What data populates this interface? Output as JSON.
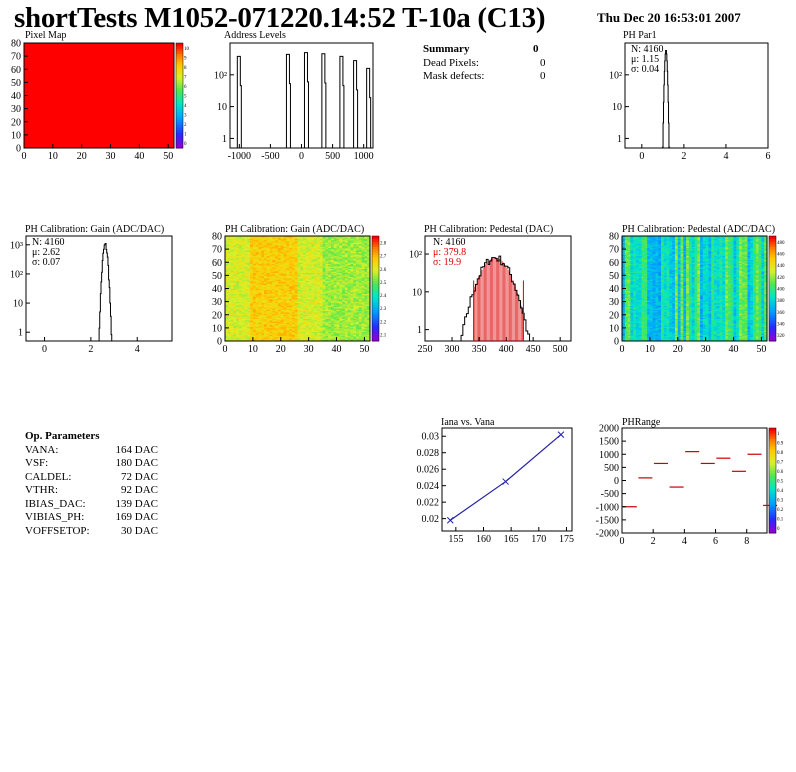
{
  "title": "shortTests M1052-071220.14:52 T-10a (C13)",
  "datetime": "Thu Dec 20 16:53:01 2007",
  "summary": {
    "heading": "Summary",
    "heading_value": "0",
    "rows": [
      {
        "label": "Dead Pixels:",
        "value": "0"
      },
      {
        "label": "Mask defects:",
        "value": "0"
      }
    ]
  },
  "op_params": {
    "heading": "Op. Parameters",
    "rows": [
      {
        "label": "VANA:",
        "value": "164 DAC"
      },
      {
        "label": "VSF:",
        "value": "180 DAC"
      },
      {
        "label": "CALDEL:",
        "value": "72 DAC"
      },
      {
        "label": "VTHR:",
        "value": "92 DAC"
      },
      {
        "label": "IBIAS_DAC:",
        "value": "139 DAC"
      },
      {
        "label": "VIBIAS_PH:",
        "value": "169 DAC"
      },
      {
        "label": "VOFFSETOP:",
        "value": "30 DAC"
      }
    ]
  },
  "chart_data": [
    {
      "id": "pixel-map",
      "type": "heatmap",
      "title": "Pixel Map",
      "x_ticks": [
        "0",
        "10",
        "20",
        "30",
        "40",
        "50"
      ],
      "y_ticks": [
        "0",
        "10",
        "20",
        "30",
        "40",
        "50",
        "60",
        "70",
        "80"
      ],
      "xlim": [
        0,
        52
      ],
      "ylim": [
        0,
        80
      ],
      "fill_value": 10,
      "color_scale": {
        "min": 0,
        "max": 10,
        "ticks": [
          "0",
          "1",
          "2",
          "3",
          "4",
          "5",
          "6",
          "7",
          "8",
          "9",
          "10"
        ]
      }
    },
    {
      "id": "address-levels",
      "type": "histogram",
      "title": "Address Levels",
      "x_ticks": [
        "-1000",
        "-500",
        "0",
        "500",
        "1000"
      ],
      "y_ticks": [
        "1",
        "10",
        "10²"
      ],
      "xlim": [
        -1150,
        1150
      ],
      "ylim_log": [
        0.5,
        1000
      ],
      "peaks": [
        {
          "x": -1000,
          "y": 380
        },
        {
          "x": -210,
          "y": 440
        },
        {
          "x": 80,
          "y": 500
        },
        {
          "x": 360,
          "y": 460
        },
        {
          "x": 650,
          "y": 380
        },
        {
          "x": 870,
          "y": 280
        },
        {
          "x": 1080,
          "y": 160
        }
      ]
    },
    {
      "id": "ph-par1",
      "type": "histogram",
      "title": "PH Par1",
      "x_ticks": [
        "0",
        "2",
        "4",
        "6"
      ],
      "y_ticks": [
        "1",
        "10",
        "10²"
      ],
      "xlim": [
        -0.8,
        6
      ],
      "ylim_log": [
        0.5,
        1000
      ],
      "stats": {
        "N": "4160",
        "mu": "1.15",
        "sigma": "0.04"
      },
      "stat_labels": {
        "N": "N:",
        "mu": "μ:",
        "sigma": "σ:"
      },
      "distribution": {
        "mean": 1.15,
        "sigma": 0.04,
        "peak": 600
      }
    },
    {
      "id": "ph-gain",
      "type": "histogram",
      "title": "PH Calibration: Gain (ADC/DAC)",
      "x_ticks": [
        "0",
        "2",
        "4"
      ],
      "y_ticks": [
        "1",
        "10",
        "10²",
        "10³"
      ],
      "xlim": [
        -0.8,
        5.5
      ],
      "ylim_log": [
        0.5,
        2000
      ],
      "stats": {
        "N": "4160",
        "mu": "2.62",
        "sigma": "0.07"
      },
      "stat_labels": {
        "N": "N:",
        "mu": "μ:",
        "sigma": "σ:"
      },
      "distribution": {
        "mean": 2.62,
        "sigma": 0.07,
        "peak": 1000
      }
    },
    {
      "id": "ph-gain-map",
      "type": "heatmap",
      "title": "PH Calibration: Gain (ADC/DAC)",
      "x_ticks": [
        "0",
        "10",
        "20",
        "30",
        "40",
        "50"
      ],
      "y_ticks": [
        "0",
        "10",
        "20",
        "30",
        "40",
        "50",
        "60",
        "70",
        "80"
      ],
      "xlim": [
        0,
        52
      ],
      "ylim": [
        0,
        80
      ],
      "color_scale": {
        "min": 2.05,
        "max": 2.85,
        "ticks": [
          "2.1",
          "2.2",
          "2.3",
          "2.4",
          "2.5",
          "2.6",
          "2.7",
          "2.8"
        ]
      }
    },
    {
      "id": "ph-pedestal",
      "type": "histogram",
      "title": "PH Calibration: Pedestal (DAC)",
      "x_ticks": [
        "250",
        "300",
        "350",
        "400",
        "450",
        "500"
      ],
      "y_ticks": [
        "1",
        "10",
        "10²"
      ],
      "xlim": [
        250,
        520
      ],
      "ylim_log": [
        0.5,
        300
      ],
      "stats": {
        "N": "4160",
        "mu": "379.8",
        "sigma": "19.9"
      },
      "stat_labels": {
        "N": "N:",
        "mu": "μ:",
        "sigma": "σ:"
      },
      "fit_color": "#dd0000",
      "distribution": {
        "mean": 379.8,
        "sigma": 19.9,
        "peak": 80
      },
      "cuts": [
        340,
        432
      ]
    },
    {
      "id": "ph-pedestal-map",
      "type": "heatmap",
      "title": "PH Calibration: Pedestal (ADC/DAC)",
      "x_ticks": [
        "0",
        "10",
        "20",
        "30",
        "40",
        "50"
      ],
      "y_ticks": [
        "0",
        "10",
        "20",
        "30",
        "40",
        "50",
        "60",
        "70",
        "80"
      ],
      "xlim": [
        0,
        52
      ],
      "ylim": [
        0,
        80
      ],
      "color_scale": {
        "min": 310,
        "max": 490,
        "ticks": [
          "320",
          "340",
          "360",
          "380",
          "400",
          "420",
          "440",
          "460",
          "480"
        ]
      }
    },
    {
      "id": "iana-vana",
      "type": "line",
      "title": "Iana vs. Vana",
      "x_ticks": [
        "155",
        "160",
        "165",
        "170",
        "175"
      ],
      "y_ticks": [
        "0.02",
        "0.022",
        "0.024",
        "0.026",
        "0.028",
        "0.03"
      ],
      "xlim": [
        152.5,
        176
      ],
      "ylim": [
        0.0185,
        0.031
      ],
      "x": [
        154,
        164,
        174
      ],
      "y": [
        0.0198,
        0.0245,
        0.0302
      ],
      "line_color": "#2222aa"
    },
    {
      "id": "phrange",
      "type": "scatter",
      "title": "PHRange",
      "x_ticks": [
        "0",
        "2",
        "4",
        "6",
        "8"
      ],
      "y_ticks": [
        "-2000",
        "-1500",
        "-1000",
        "-500",
        "0",
        "500",
        "1000",
        "1500",
        "2000"
      ],
      "xlim": [
        0,
        9.3
      ],
      "ylim": [
        -2000,
        2000
      ],
      "x": [
        0,
        1,
        2,
        3,
        4,
        5,
        6,
        7,
        8,
        9
      ],
      "y": [
        -1000,
        100,
        650,
        -250,
        1100,
        650,
        850,
        350,
        1000,
        -950
      ],
      "mark_color": "#cc0000",
      "color_scale": {
        "ticks": [
          "0",
          "0.1",
          "0.2",
          "0.3",
          "0.4",
          "0.5",
          "0.6",
          "0.7",
          "0.8",
          "0.9",
          "1"
        ]
      }
    }
  ]
}
